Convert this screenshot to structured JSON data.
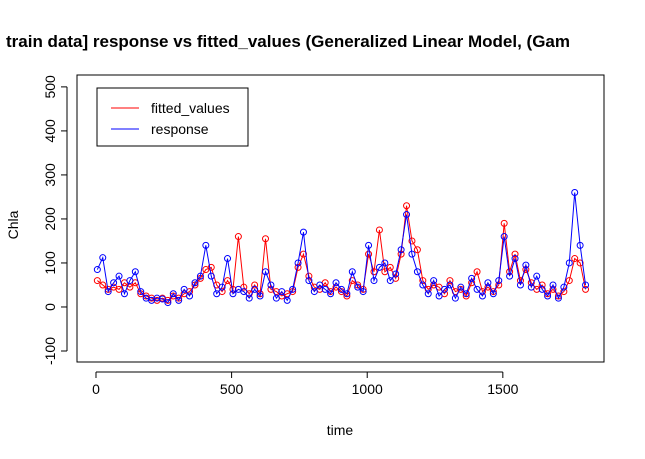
{
  "chart_data": {
    "type": "line",
    "title": "train data] response vs fitted_values (Generalized Linear Model, (Gam",
    "x_label": "time",
    "y_label": "Chla",
    "x": [
      5,
      25,
      45,
      65,
      85,
      105,
      125,
      145,
      165,
      185,
      205,
      225,
      245,
      265,
      285,
      305,
      325,
      345,
      365,
      385,
      405,
      425,
      445,
      465,
      485,
      505,
      525,
      545,
      565,
      585,
      605,
      625,
      645,
      665,
      685,
      705,
      725,
      745,
      765,
      785,
      805,
      825,
      845,
      865,
      885,
      905,
      925,
      945,
      965,
      985,
      1005,
      1025,
      1045,
      1065,
      1085,
      1105,
      1125,
      1145,
      1165,
      1185,
      1205,
      1225,
      1245,
      1265,
      1285,
      1305,
      1325,
      1345,
      1365,
      1385,
      1405,
      1425,
      1445,
      1465,
      1485,
      1505,
      1525,
      1545,
      1565,
      1585,
      1605,
      1625,
      1645,
      1665,
      1685,
      1705,
      1725,
      1745,
      1765,
      1785,
      1805
    ],
    "series": [
      {
        "name": "fitted_values",
        "color": "#ff0000",
        "values": [
          60,
          50,
          40,
          45,
          40,
          55,
          45,
          55,
          30,
          25,
          20,
          15,
          20,
          15,
          25,
          20,
          30,
          35,
          50,
          65,
          85,
          90,
          50,
          35,
          60,
          40,
          160,
          45,
          30,
          50,
          30,
          155,
          40,
          35,
          25,
          30,
          35,
          90,
          120,
          70,
          45,
          40,
          55,
          35,
          45,
          35,
          25,
          60,
          50,
          40,
          120,
          80,
          175,
          80,
          90,
          65,
          120,
          230,
          150,
          130,
          60,
          40,
          50,
          45,
          30,
          60,
          35,
          40,
          25,
          55,
          80,
          35,
          45,
          35,
          50,
          190,
          80,
          120,
          60,
          85,
          55,
          40,
          50,
          30,
          40,
          25,
          35,
          60,
          110,
          100,
          40
        ]
      },
      {
        "name": "response",
        "color": "#0000ff",
        "values": [
          85,
          112,
          35,
          55,
          70,
          30,
          60,
          80,
          35,
          20,
          15,
          20,
          18,
          10,
          30,
          15,
          40,
          25,
          55,
          70,
          140,
          70,
          30,
          45,
          110,
          30,
          40,
          35,
          20,
          40,
          25,
          80,
          50,
          20,
          35,
          15,
          40,
          100,
          170,
          60,
          35,
          50,
          40,
          30,
          55,
          40,
          30,
          80,
          45,
          35,
          140,
          60,
          90,
          100,
          60,
          75,
          130,
          210,
          120,
          80,
          50,
          30,
          60,
          25,
          40,
          50,
          20,
          45,
          30,
          65,
          40,
          25,
          55,
          30,
          60,
          160,
          70,
          110,
          50,
          95,
          45,
          70,
          40,
          25,
          50,
          20,
          45,
          100,
          260,
          140,
          50
        ]
      }
    ],
    "xlim": [
      -70,
      1873
    ],
    "ylim": [
      -125,
      527
    ],
    "xticks": [
      0,
      500,
      1000,
      1500
    ],
    "yticks": [
      -100,
      0,
      100,
      200,
      300,
      400,
      500
    ],
    "legend": "top-left"
  }
}
